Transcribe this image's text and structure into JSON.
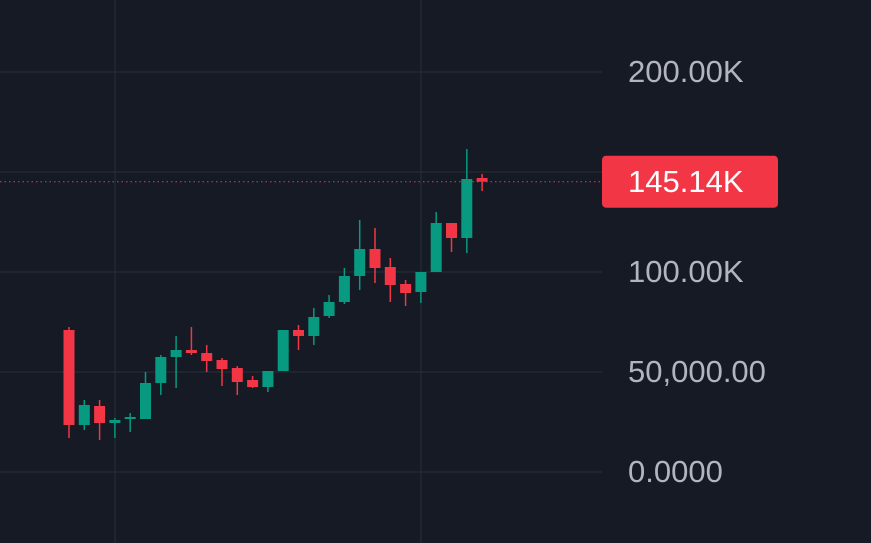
{
  "chart_data": {
    "type": "candlestick",
    "open": [
      71000,
      23500,
      33000,
      24500,
      26500,
      26500,
      44500,
      57500,
      61000,
      59500,
      56000,
      52000,
      46000,
      42500,
      50500,
      71000,
      68000,
      78000,
      85000,
      98000,
      111500,
      102500,
      94000,
      90000,
      100000,
      124500,
      117000,
      147000
    ],
    "high": [
      72500,
      36000,
      36000,
      27000,
      29500,
      50000,
      58500,
      68000,
      72500,
      63500,
      57000,
      53000,
      48000,
      50500,
      71000,
      73500,
      82000,
      88500,
      102000,
      126000,
      122000,
      107000,
      96000,
      100000,
      130000,
      124500,
      161500,
      149000
    ],
    "low": [
      17000,
      21000,
      16000,
      17000,
      20000,
      26500,
      38500,
      42000,
      58500,
      50000,
      43000,
      38500,
      42000,
      40000,
      50500,
      61000,
      63500,
      77000,
      84000,
      91000,
      94500,
      85000,
      83000,
      84500,
      100000,
      110000,
      109500,
      140500
    ],
    "close": [
      23500,
      33500,
      24500,
      26000,
      27500,
      44500,
      57500,
      61000,
      59500,
      55500,
      51500,
      45000,
      42500,
      50500,
      71000,
      68000,
      77500,
      85000,
      98000,
      111500,
      102000,
      93500,
      89500,
      100000,
      124500,
      117000,
      146500,
      145140
    ],
    "up_color": "#089981",
    "down_color": "#f23645",
    "ylim": [
      -35500,
      236000
    ],
    "yticks": [
      {
        "value": 0,
        "label": "0.0000"
      },
      {
        "value": 50000,
        "label": "50,000.00"
      },
      {
        "value": 100000,
        "label": "100.00K"
      },
      {
        "value": 150000,
        "label": null
      },
      {
        "value": 200000,
        "label": "200.00K"
      }
    ],
    "last_price": {
      "value": 145140,
      "label": "145.14K"
    },
    "grid": true
  }
}
